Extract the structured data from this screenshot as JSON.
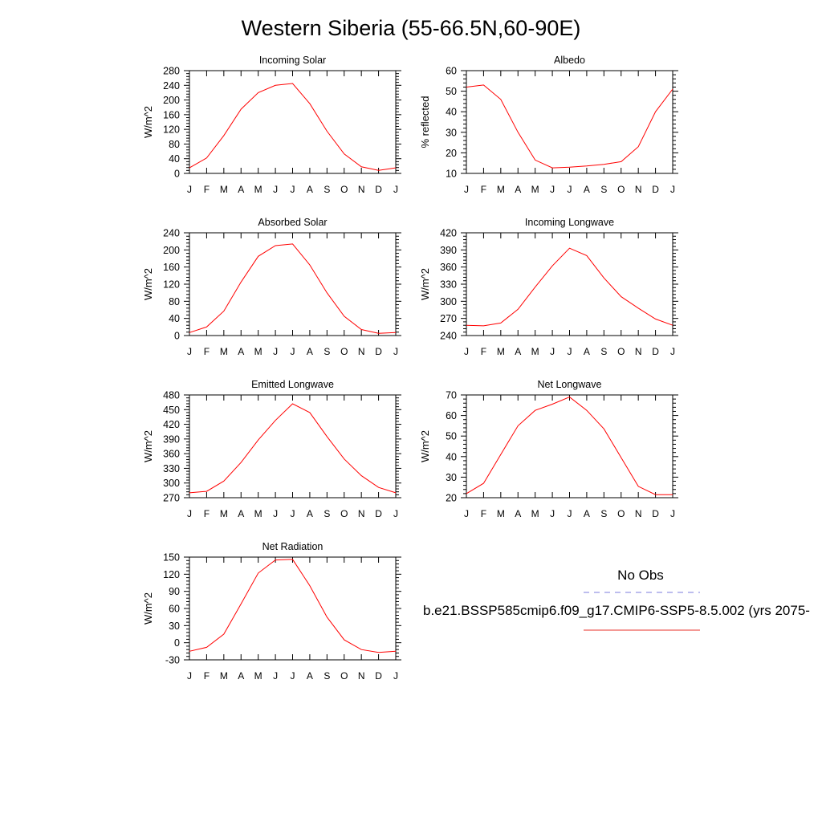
{
  "title": "Western Siberia (55-66.5N,60-90E)",
  "legend": {
    "obs_label": "No Obs",
    "obs_color": "#7b7bdc",
    "model_label": "b.e21.BSSP585cmip6.f09_g17.CMIP6-SSP5-8.5.002 (yrs 2075-",
    "model_color": "#e8302a"
  },
  "line_color": "#ff0000",
  "chart_data": [
    {
      "type": "line",
      "title": "Incoming Solar",
      "ylabel": "W/m^2",
      "categories": [
        "J",
        "F",
        "M",
        "A",
        "M",
        "J",
        "J",
        "A",
        "S",
        "O",
        "N",
        "D",
        "J"
      ],
      "ylim": [
        0,
        280
      ],
      "yticks": [
        0,
        40,
        80,
        120,
        160,
        200,
        240,
        280
      ],
      "series": [
        {
          "values": [
            15,
            42,
            103,
            175,
            220,
            240,
            245,
            190,
            115,
            53,
            18,
            8,
            15
          ]
        }
      ]
    },
    {
      "type": "line",
      "title": "Albedo",
      "ylabel": "% reflected",
      "categories": [
        "J",
        "F",
        "M",
        "A",
        "M",
        "J",
        "J",
        "A",
        "S",
        "O",
        "N",
        "D",
        "J"
      ],
      "ylim": [
        10,
        60
      ],
      "yticks": [
        10,
        20,
        30,
        40,
        50,
        60
      ],
      "series": [
        {
          "values": [
            52,
            53,
            46,
            30,
            16.5,
            12.7,
            13,
            13.6,
            14.4,
            15.7,
            23,
            40,
            51
          ]
        }
      ]
    },
    {
      "type": "line",
      "title": "Absorbed Solar",
      "ylabel": "W/m^2",
      "categories": [
        "J",
        "F",
        "M",
        "A",
        "M",
        "J",
        "J",
        "A",
        "S",
        "O",
        "N",
        "D",
        "J"
      ],
      "ylim": [
        0,
        240
      ],
      "yticks": [
        0,
        40,
        80,
        120,
        160,
        200,
        240
      ],
      "series": [
        {
          "values": [
            7,
            20,
            57,
            125,
            185,
            210,
            214,
            165,
            100,
            45,
            14,
            5,
            7
          ]
        }
      ]
    },
    {
      "type": "line",
      "title": "Incoming Longwave",
      "ylabel": "W/m^2",
      "categories": [
        "J",
        "F",
        "M",
        "A",
        "M",
        "J",
        "J",
        "A",
        "S",
        "O",
        "N",
        "D",
        "J"
      ],
      "ylim": [
        240,
        420
      ],
      "yticks": [
        240,
        270,
        300,
        330,
        360,
        390,
        420
      ],
      "series": [
        {
          "values": [
            258,
            257,
            262,
            286,
            325,
            362,
            393,
            380,
            341,
            308,
            288,
            269,
            258
          ]
        }
      ]
    },
    {
      "type": "line",
      "title": "Emitted Longwave",
      "ylabel": "W/m^2",
      "categories": [
        "J",
        "F",
        "M",
        "A",
        "M",
        "J",
        "J",
        "A",
        "S",
        "O",
        "N",
        "D",
        "J"
      ],
      "ylim": [
        270,
        480
      ],
      "yticks": [
        270,
        300,
        330,
        360,
        390,
        420,
        450,
        480
      ],
      "series": [
        {
          "values": [
            280,
            283,
            304,
            342,
            388,
            428,
            462,
            444,
            395,
            349,
            315,
            291,
            280
          ]
        }
      ]
    },
    {
      "type": "line",
      "title": "Net Longwave",
      "ylabel": "W/m^2",
      "categories": [
        "J",
        "F",
        "M",
        "A",
        "M",
        "J",
        "J",
        "A",
        "S",
        "O",
        "N",
        "D",
        "J"
      ],
      "ylim": [
        20,
        70
      ],
      "yticks": [
        20,
        30,
        40,
        50,
        60,
        70
      ],
      "series": [
        {
          "values": [
            22,
            27,
            41,
            55,
            62.5,
            65.5,
            69,
            62.5,
            53.5,
            39.5,
            25.5,
            21.5,
            21.5
          ]
        }
      ]
    },
    {
      "type": "line",
      "title": "Net Radiation",
      "ylabel": "W/m^2",
      "categories": [
        "J",
        "F",
        "M",
        "A",
        "M",
        "J",
        "J",
        "A",
        "S",
        "O",
        "N",
        "D",
        "J"
      ],
      "ylim": [
        -30,
        150
      ],
      "yticks": [
        -30,
        0,
        30,
        60,
        90,
        120,
        150
      ],
      "series": [
        {
          "values": [
            -15,
            -8,
            15,
            68,
            122,
            145,
            146,
            100,
            45,
            5,
            -12,
            -17,
            -15
          ]
        }
      ]
    }
  ]
}
